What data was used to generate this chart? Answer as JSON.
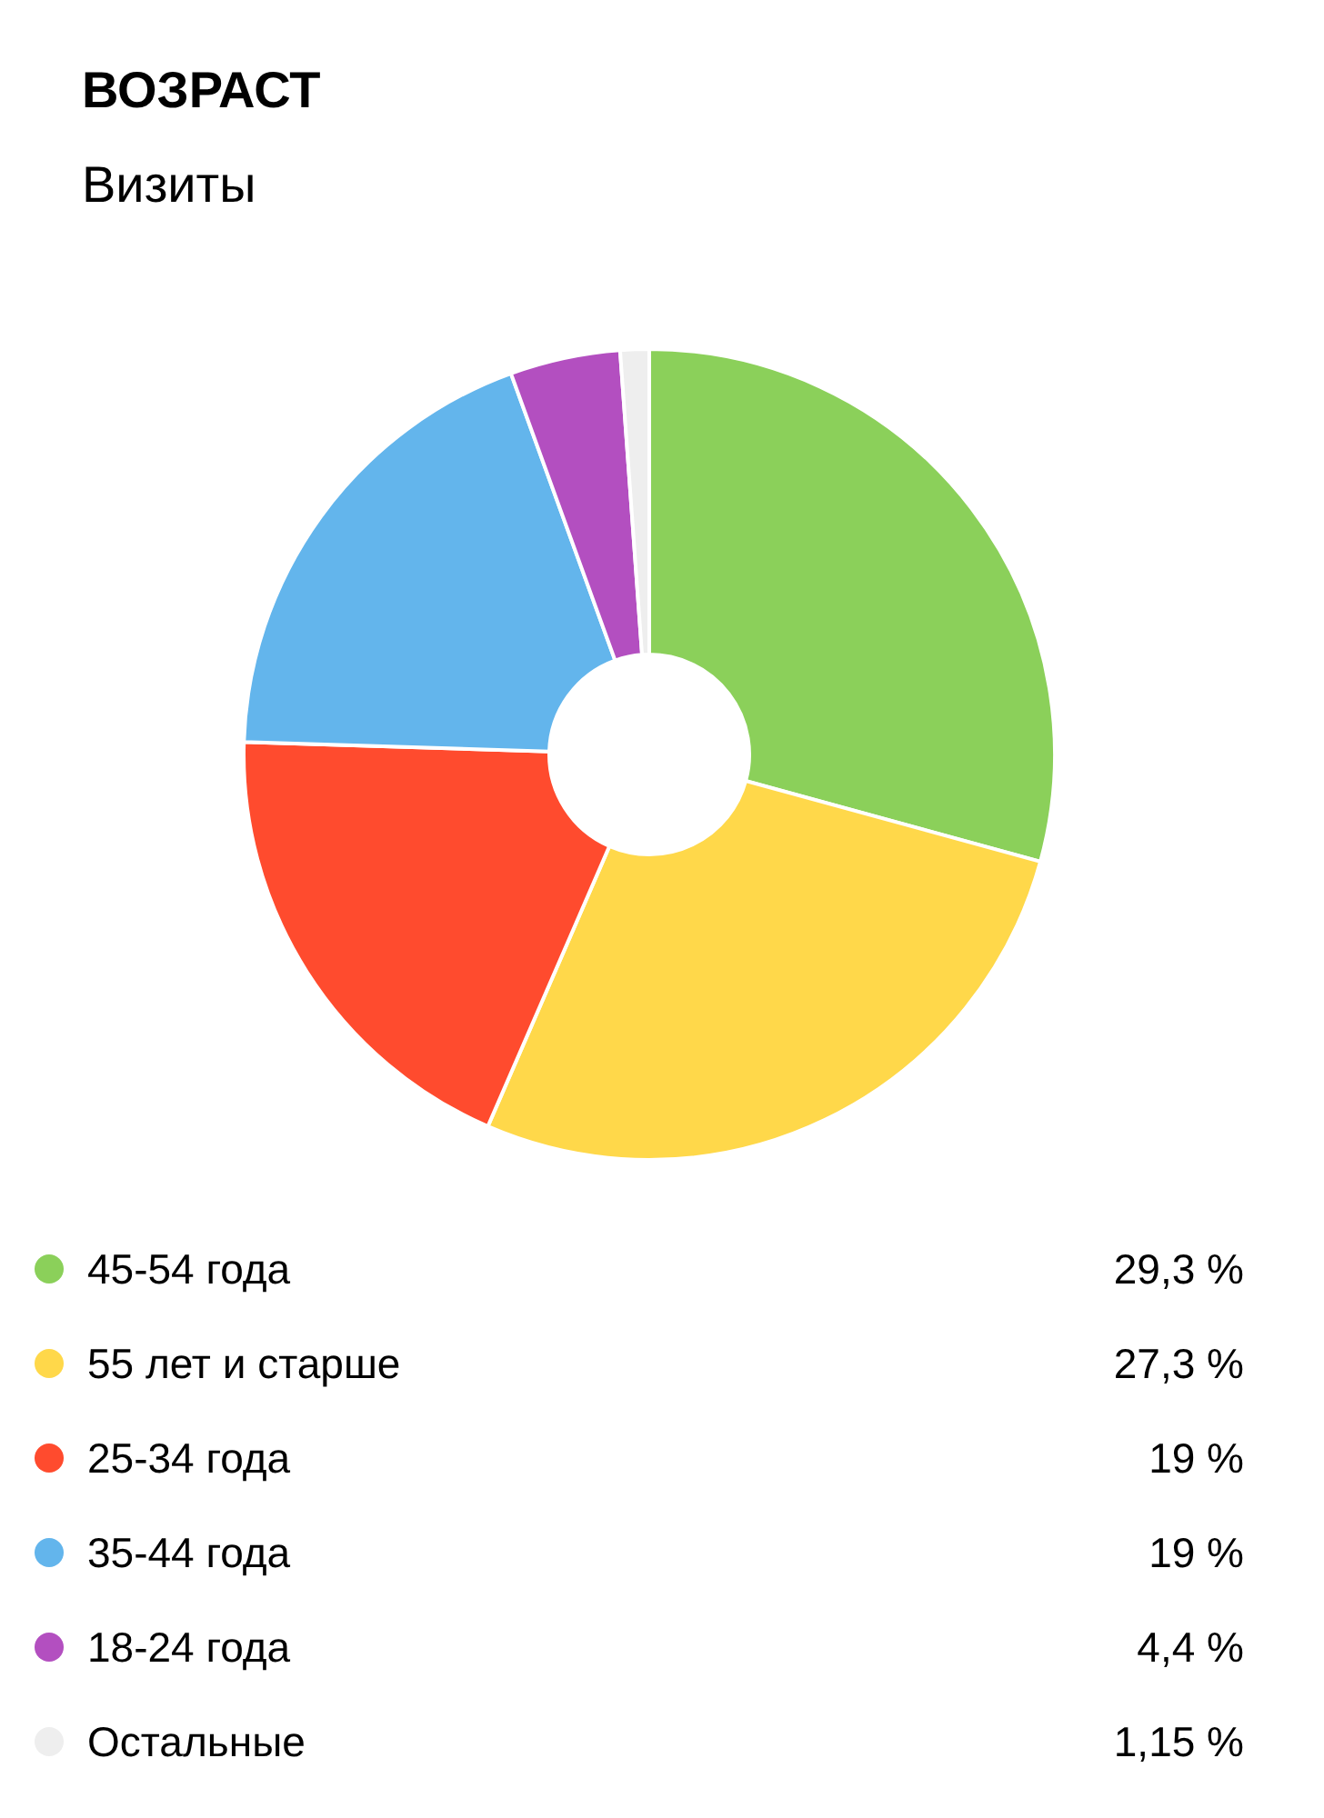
{
  "chart_data": {
    "type": "donut",
    "title": "ВОЗРАСТ",
    "subtitle": "Визиты",
    "categories": [
      "45-54 года",
      "55 лет и старше",
      "25-34 года",
      "35-44 года",
      "18-24 года",
      "Остальные"
    ],
    "values": [
      29.3,
      27.3,
      19,
      19,
      4.4,
      1.15
    ],
    "value_labels": [
      "29,3 %",
      "27,3 %",
      "19 %",
      "19 %",
      "4,4 %",
      "1,15 %"
    ],
    "colors": [
      "#8bd05a",
      "#ffd84a",
      "#ff4b2e",
      "#63b5ec",
      "#b34fc0",
      "#eeeeee"
    ],
    "legend": "bottom"
  }
}
